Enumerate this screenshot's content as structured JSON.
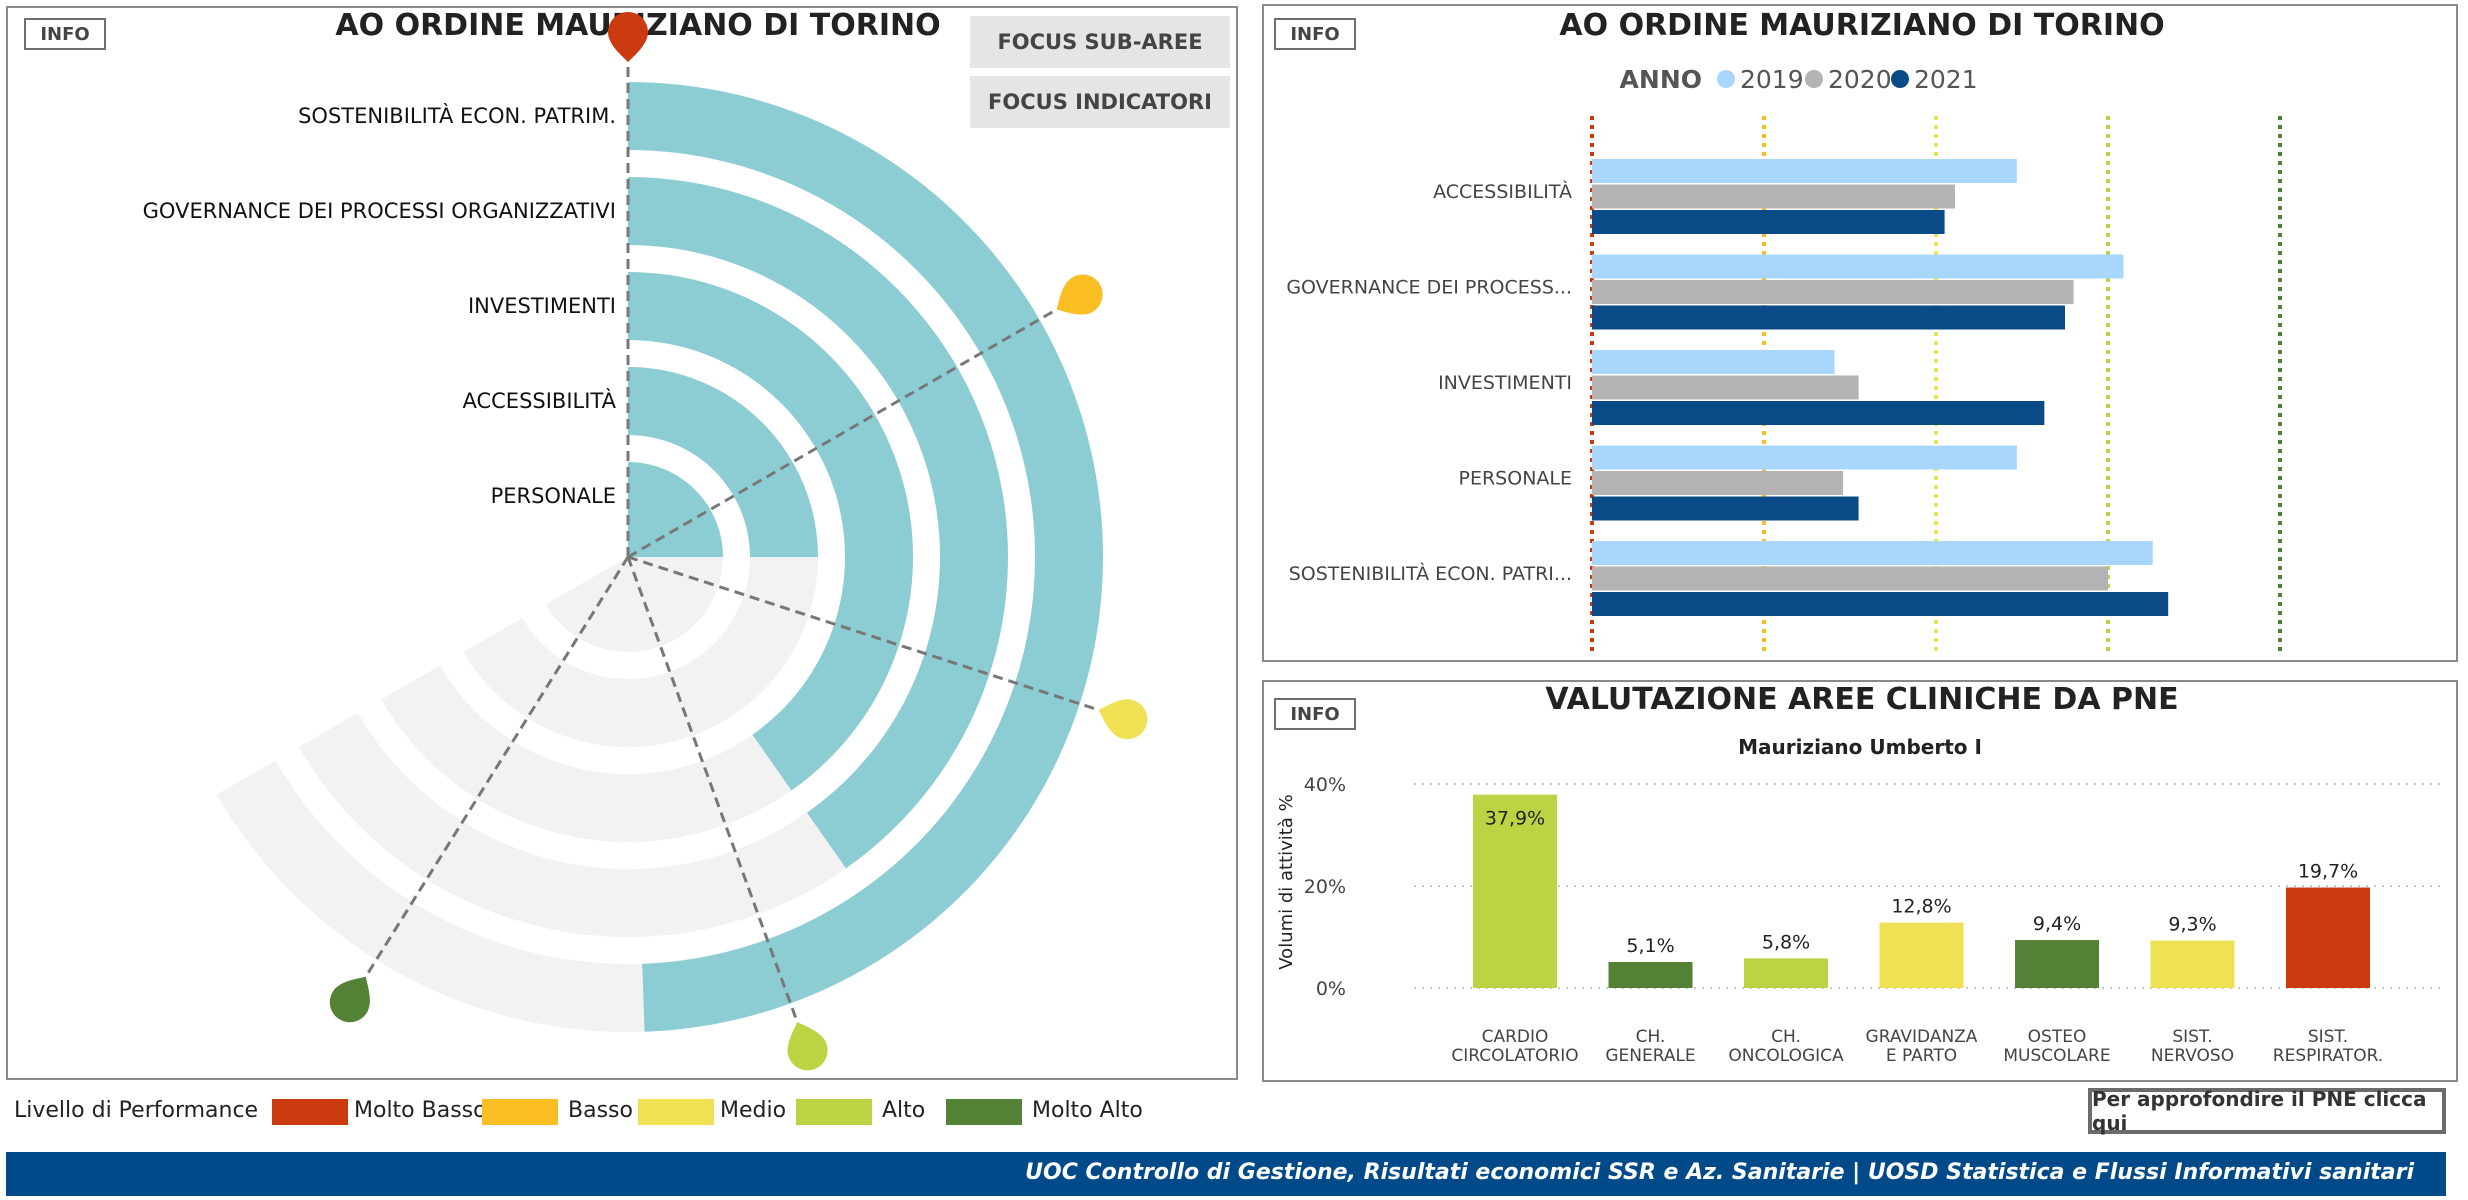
{
  "colors": {
    "molto_basso": "#cc3b0f",
    "basso": "#fbbd24",
    "medio": "#efe054",
    "alto": "#bad443",
    "molto_alto": "#538135",
    "teal": "#8ccdd4",
    "y2019": "#a8d6fc",
    "y2020": "#b3b3b3",
    "y2021": "#0a4a87",
    "footer": "#004a8a"
  },
  "radial": {
    "info_label": "INFO",
    "title": "AO ORDINE MAURIZIANO DI TORINO",
    "focus_subaree": "FOCUS SUB-AREE",
    "focus_indicatori": "FOCUS INDICATORI",
    "rings": [
      {
        "label": "SOSTENIBILITÀ ECON. PATRIM.",
        "sweep_deg": 178
      },
      {
        "label": "GOVERNANCE DEI PROCESSI ORGANIZZATIVI",
        "sweep_deg": 145
      },
      {
        "label": "INVESTIMENTI",
        "sweep_deg": 145
      },
      {
        "label": "ACCESSIBILITÀ",
        "sweep_deg": 90
      },
      {
        "label": "PERSONALE",
        "sweep_deg": 90
      }
    ],
    "max_sweep_deg": 240,
    "thresholds": [
      {
        "level": "molto_basso",
        "angle_deg": 0
      },
      {
        "level": "basso",
        "angle_deg": 60
      },
      {
        "level": "medio",
        "angle_deg": 108
      },
      {
        "level": "alto",
        "angle_deg": 160
      },
      {
        "level": "molto_alto",
        "angle_deg": 212
      }
    ]
  },
  "legend": {
    "title": "Livello di Performance",
    "items": [
      {
        "key": "molto_basso",
        "label": "Molto Basso"
      },
      {
        "key": "basso",
        "label": "Basso"
      },
      {
        "key": "medio",
        "label": "Medio"
      },
      {
        "key": "alto",
        "label": "Alto"
      },
      {
        "key": "molto_alto",
        "label": "Molto Alto"
      }
    ]
  },
  "chart_data": [
    {
      "type": "bar",
      "orientation": "horizontal",
      "title": "AO ORDINE MAURIZIANO DI TORINO",
      "legend_title": "ANNO",
      "categories": [
        "ACCESSIBILITÀ",
        "GOVERNANCE DEI PROCESS...",
        "INVESTIMENTI",
        "PERSONALE",
        "SOSTENIBILITÀ ECON. PATRI..."
      ],
      "series": [
        {
          "name": "2019",
          "values": [
            2.47,
            3.09,
            1.41,
            2.47,
            3.26
          ]
        },
        {
          "name": "2020",
          "values": [
            2.11,
            2.8,
            1.55,
            1.46,
            3.0
          ]
        },
        {
          "name": "2021",
          "values": [
            2.05,
            2.75,
            2.63,
            1.55,
            3.35
          ]
        }
      ],
      "xlim": [
        0,
        4
      ],
      "reference_lines": [
        {
          "value": 0,
          "level": "molto_basso"
        },
        {
          "value": 1,
          "level": "basso"
        },
        {
          "value": 2,
          "level": "medio"
        },
        {
          "value": 3,
          "level": "alto"
        },
        {
          "value": 4,
          "level": "molto_alto"
        }
      ],
      "info_label": "INFO"
    },
    {
      "type": "bar",
      "title": "VALUTAZIONE AREE CLINICHE DA PNE",
      "subtitle": "Mauriziano Umberto I",
      "ylabel": "Volumi di attività %",
      "yticks": [
        "0%",
        "20%",
        "40%"
      ],
      "ylim": [
        0,
        40
      ],
      "categories": [
        [
          "CARDIO",
          "CIRCOLATORIO"
        ],
        [
          "CH.",
          "GENERALE"
        ],
        [
          "CH.",
          "ONCOLOGICA"
        ],
        [
          "GRAVIDANZA",
          "E PARTO"
        ],
        [
          "OSTEO",
          "MUSCOLARE"
        ],
        [
          "SIST.",
          "NERVOSO"
        ],
        [
          "SIST.",
          "RESPIRATOR."
        ]
      ],
      "values": [
        37.9,
        5.1,
        5.8,
        12.8,
        9.4,
        9.3,
        19.7
      ],
      "labels": [
        "37,9%",
        "5,1%",
        "5,8%",
        "12,8%",
        "9,4%",
        "9,3%",
        "19,7%"
      ],
      "levels": [
        "alto",
        "molto_alto",
        "alto",
        "medio",
        "molto_alto",
        "medio",
        "molto_basso"
      ],
      "info_label": "INFO"
    }
  ],
  "pne_link": "Per approfondire il PNE clicca qui",
  "footer": "UOC Controllo di Gestione, Risultati economici SSR  e Az. Sanitarie | UOSD Statistica e Flussi Informativi sanitari"
}
